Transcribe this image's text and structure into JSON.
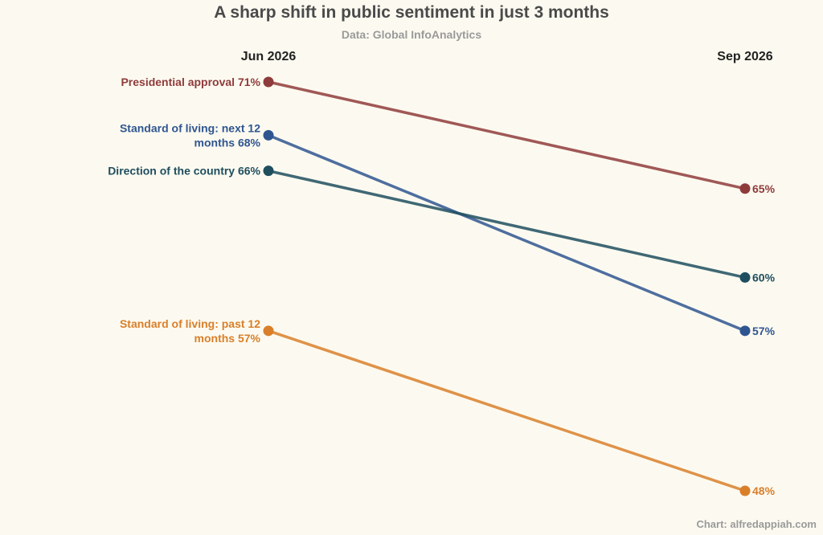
{
  "chart_data": {
    "type": "line",
    "title": "A sharp shift in public sentiment in just 3 months",
    "subtitle": "Data: Global InfoAnalytics",
    "caption": "Chart: alfredappiah.com",
    "x": [
      "Jun 2026",
      "Sep 2026"
    ],
    "ylim": [
      48,
      71
    ],
    "grid": false,
    "series": [
      {
        "name": "Presidential approval",
        "label_lines": [
          "Presidential approval"
        ],
        "values": [
          71,
          65
        ],
        "color": "#8f3b3b"
      },
      {
        "name": "Standard of living: next 12 months",
        "label_lines": [
          "Standard of living: next 12",
          "months"
        ],
        "values": [
          68,
          57
        ],
        "color": "#2f5591"
      },
      {
        "name": "Direction of the country",
        "label_lines": [
          "Direction of the country"
        ],
        "values": [
          66,
          60
        ],
        "color": "#1f4e5f"
      },
      {
        "name": "Standard of living: past 12 months",
        "label_lines": [
          "Standard of living: past 12",
          "months"
        ],
        "values": [
          57,
          48
        ],
        "color": "#d97f2a"
      }
    ],
    "value_suffix": "%"
  }
}
